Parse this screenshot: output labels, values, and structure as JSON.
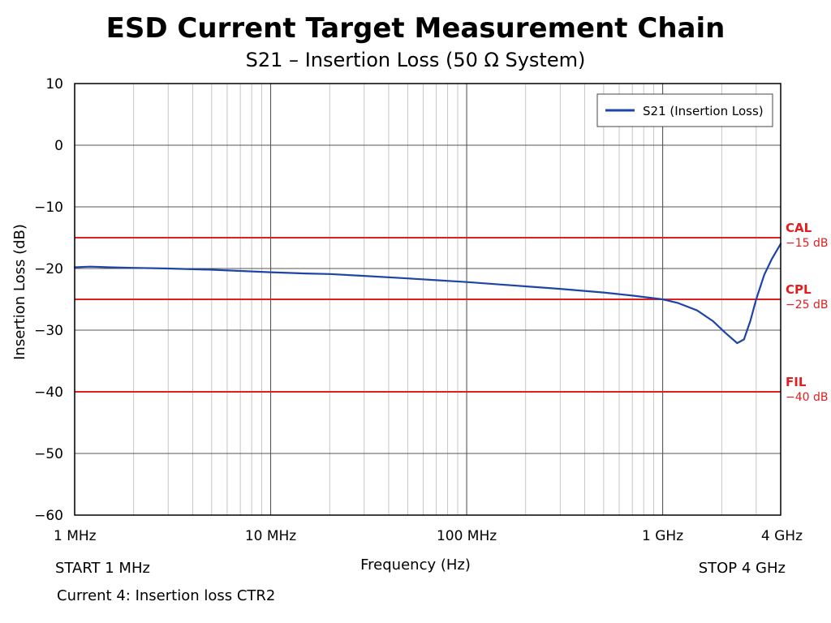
{
  "chart_data": {
    "type": "line",
    "title": "ESD Current Target Measurement Chain",
    "subtitle": "S21 – Insertion Loss (50 Ω System)",
    "xlabel": "Frequency (Hz)",
    "ylabel": "Insertion Loss (dB)",
    "x_scale": "log",
    "xlim": [
      1000000,
      4000000000
    ],
    "ylim": [
      -60,
      10
    ],
    "x_ticks": [
      {
        "value": 1000000,
        "label": "1 MHz"
      },
      {
        "value": 10000000,
        "label": "10 MHz"
      },
      {
        "value": 100000000,
        "label": "100 MHz"
      },
      {
        "value": 1000000000,
        "label": "1 GHz"
      },
      {
        "value": 4000000000,
        "label": "4 GHz"
      }
    ],
    "y_ticks": [
      10,
      0,
      -10,
      -20,
      -30,
      -40,
      -50,
      -60
    ],
    "y_tick_labels": [
      "10",
      "0",
      "−10",
      "−20",
      "−30",
      "−40",
      "−50",
      "−60"
    ],
    "grid": true,
    "legend": {
      "placement": "top-right",
      "entries": [
        "S21 (Insertion Loss)"
      ]
    },
    "series": [
      {
        "name": "S21 (Insertion Loss)",
        "color": "#1f44a8",
        "points": [
          [
            1000000,
            -19.8
          ],
          [
            1200000,
            -19.7
          ],
          [
            1500000,
            -19.8
          ],
          [
            2000000,
            -19.9
          ],
          [
            3000000,
            -20.0
          ],
          [
            5000000,
            -20.2
          ],
          [
            7000000,
            -20.4
          ],
          [
            10000000,
            -20.6
          ],
          [
            15000000,
            -20.8
          ],
          [
            20000000,
            -20.9
          ],
          [
            30000000,
            -21.2
          ],
          [
            50000000,
            -21.6
          ],
          [
            70000000,
            -21.9
          ],
          [
            100000000,
            -22.2
          ],
          [
            150000000,
            -22.6
          ],
          [
            200000000,
            -22.9
          ],
          [
            300000000,
            -23.3
          ],
          [
            500000000,
            -23.9
          ],
          [
            700000000,
            -24.4
          ],
          [
            1000000000,
            -25.0
          ],
          [
            1200000000,
            -25.6
          ],
          [
            1500000000,
            -26.8
          ],
          [
            1800000000,
            -28.5
          ],
          [
            2100000000,
            -30.5
          ],
          [
            2400000000,
            -32.1
          ],
          [
            2600000000,
            -31.5
          ],
          [
            2800000000,
            -28.5
          ],
          [
            3000000000,
            -25.0
          ],
          [
            3300000000,
            -21.0
          ],
          [
            3600000000,
            -18.5
          ],
          [
            4000000000,
            -16.0
          ]
        ]
      }
    ],
    "reference_lines": [
      {
        "name": "CAL",
        "value": -15,
        "label": "−15 dB",
        "color": "#e02020"
      },
      {
        "name": "CPL",
        "value": -25,
        "label": "−25 dB",
        "color": "#e02020"
      },
      {
        "name": "FIL",
        "value": -40,
        "label": "−40 dB",
        "color": "#e02020"
      }
    ],
    "footer": {
      "start": "START  1  MHz",
      "stop": "STOP 4 GHz",
      "note": "Current 4:  Insertion loss CTR2"
    }
  }
}
